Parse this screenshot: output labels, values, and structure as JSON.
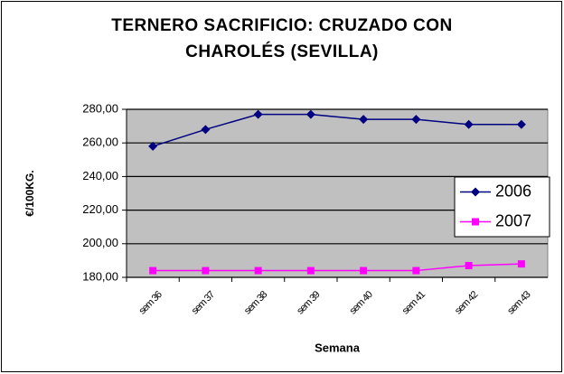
{
  "chart_data": {
    "type": "line",
    "title": "TERNERO SACRIFICIO: CRUZADO CON CHAROLÉS (SEVILLA)",
    "x_label": "Semana",
    "y_label": "€/100KG.",
    "categories": [
      "sem 36",
      "sem 37",
      "sem 38",
      "sem 39",
      "sem 40",
      "sem 41",
      "sem 42",
      "sem 43"
    ],
    "series": [
      {
        "name": "2006",
        "color": "#000080",
        "marker": "diamond",
        "values": [
          258,
          268,
          277,
          277,
          274,
          274,
          271,
          271
        ]
      },
      {
        "name": "2007",
        "color": "#ff00ff",
        "marker": "square",
        "values": [
          184,
          184,
          184,
          184,
          184,
          184,
          187,
          188
        ]
      }
    ],
    "ylim": [
      180,
      280
    ],
    "yticks": [
      {
        "value": 180,
        "label": "180,00"
      },
      {
        "value": 200,
        "label": "200,00"
      },
      {
        "value": 220,
        "label": "220,00"
      },
      {
        "value": 240,
        "label": "240,00"
      },
      {
        "value": 260,
        "label": "260,00"
      },
      {
        "value": 280,
        "label": "280,00"
      }
    ],
    "grid": true,
    "plot_background": "#c0c0c0",
    "legend": "right"
  }
}
